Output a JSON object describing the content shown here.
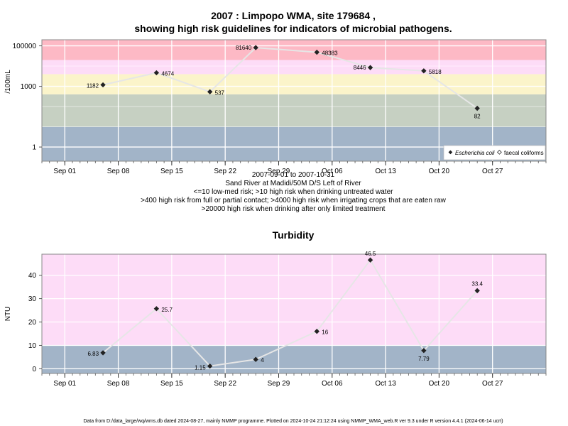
{
  "chart_data": [
    {
      "type": "line",
      "title_line1": "2007 : Limpopo WMA, site 179684 ,",
      "title_line2": "showing high risk guidelines for indicators of microbial pathogens.",
      "ylabel": "/100mL",
      "yscale": "log",
      "ylim": [
        0.2,
        200000
      ],
      "yticks": [
        {
          "value": 1,
          "label": "1"
        },
        {
          "value": 1000,
          "label": "1000"
        },
        {
          "value": 100000,
          "label": "100000"
        }
      ],
      "x_dates": [
        "2007-09-01",
        "2007-09-08",
        "2007-09-15",
        "2007-09-22",
        "2007-09-29",
        "2007-10-06",
        "2007-10-13",
        "2007-10-20",
        "2007-10-27"
      ],
      "x_tick_labels": [
        "Sep 01",
        "Sep 08",
        "Sep 15",
        "Sep 22",
        "Sep 29",
        "Oct 06",
        "Oct 13",
        "Oct 20",
        "Oct 27"
      ],
      "xlim": [
        "2007-08-29",
        "2007-11-03"
      ],
      "bands": [
        {
          "from": 0.2,
          "to": 10,
          "color": "#a2b4c8"
        },
        {
          "from": 10,
          "to": 400,
          "color": "#c6d0c2"
        },
        {
          "from": 400,
          "to": 4000,
          "color": "#fbf4ca"
        },
        {
          "from": 4000,
          "to": 20000,
          "color": "#fddcf7"
        },
        {
          "from": 20000,
          "to": 200000,
          "color": "#fdb9c5"
        }
      ],
      "series": [
        {
          "name": "Escherichia coli",
          "marker": "filled-diamond",
          "points": [
            {
              "x": "2007-09-06",
              "y": 1182,
              "label": "1182"
            },
            {
              "x": "2007-09-13",
              "y": 4674,
              "label": "4674"
            },
            {
              "x": "2007-09-20",
              "y": 537,
              "label": "537"
            },
            {
              "x": "2007-09-26",
              "y": 81640,
              "label": "81640"
            },
            {
              "x": "2007-10-04",
              "y": 48383,
              "label": "48383"
            },
            {
              "x": "2007-10-11",
              "y": 8446,
              "label": "8446"
            },
            {
              "x": "2007-10-18",
              "y": 5818,
              "label": "5818"
            },
            {
              "x": "2007-10-25",
              "y": 82,
              "label": "82"
            }
          ]
        },
        {
          "name": "faecal coliforms",
          "marker": "open-diamond",
          "points": []
        }
      ],
      "legend": "bottom-right",
      "subtitle_lines": [
        "2007-09-01 to 2007-10-31",
        "Sand River at Madidi/50M D/S Left of River",
        "<=10 low-med risk; >10 high risk when drinking untreated water",
        ">400 high risk from full or partial contact; >4000 high risk when irrigating crops that are eaten raw",
        ">20000 high risk when drinking after only limited treatment"
      ]
    },
    {
      "type": "line",
      "title": "Turbidity",
      "ylabel": "NTU",
      "ylim": [
        -2,
        49
      ],
      "yticks": [
        {
          "value": 0,
          "label": "0"
        },
        {
          "value": 10,
          "label": "10"
        },
        {
          "value": 20,
          "label": "20"
        },
        {
          "value": 30,
          "label": "30"
        },
        {
          "value": 40,
          "label": "40"
        }
      ],
      "x_dates": [
        "2007-09-01",
        "2007-09-08",
        "2007-09-15",
        "2007-09-22",
        "2007-09-29",
        "2007-10-06",
        "2007-10-13",
        "2007-10-20",
        "2007-10-27"
      ],
      "x_tick_labels": [
        "Sep 01",
        "Sep 08",
        "Sep 15",
        "Sep 22",
        "Sep 29",
        "Oct 06",
        "Oct 13",
        "Oct 20",
        "Oct 27"
      ],
      "xlim": [
        "2007-08-29",
        "2007-11-03"
      ],
      "bands": [
        {
          "from": -2,
          "to": 10,
          "color": "#a2b4c8"
        },
        {
          "from": 10,
          "to": 49,
          "color": "#fddcf7"
        }
      ],
      "series": [
        {
          "name": "",
          "marker": "filled-diamond",
          "points": [
            {
              "x": "2007-09-06",
              "y": 6.83,
              "label": "6.83"
            },
            {
              "x": "2007-09-13",
              "y": 25.7,
              "label": "25.7"
            },
            {
              "x": "2007-09-20",
              "y": 1.15,
              "label": "1.15"
            },
            {
              "x": "2007-09-26",
              "y": 4,
              "label": "4"
            },
            {
              "x": "2007-10-04",
              "y": 16,
              "label": "16"
            },
            {
              "x": "2007-10-11",
              "y": 46.5,
              "label": "46.5"
            },
            {
              "x": "2007-10-18",
              "y": 7.79,
              "label": "7.79"
            },
            {
              "x": "2007-10-25",
              "y": 33.4,
              "label": "33.4"
            }
          ]
        }
      ]
    }
  ],
  "footer": "Data from D:/data_large/wq/wms.db dated 2024-08-27, mainly NMMP programme. Plotted on 2024-10-24 21:12:24 using NMMP_WMA_web.R ver 9.3 under R version 4.4.1 (2024-06-14 ucrt)"
}
